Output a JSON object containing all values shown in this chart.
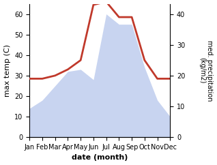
{
  "months": [
    "Jan",
    "Feb",
    "Mar",
    "Apr",
    "May",
    "Jun",
    "Jul",
    "Aug",
    "Sep",
    "Oct",
    "Nov",
    "Dec"
  ],
  "month_indices": [
    1,
    2,
    3,
    4,
    5,
    6,
    7,
    8,
    9,
    10,
    11,
    12
  ],
  "temperature": [
    14,
    18,
    25,
    32,
    33,
    28,
    60,
    55,
    55,
    34,
    18,
    10
  ],
  "precipitation": [
    19,
    19,
    20,
    22,
    25,
    43,
    44,
    39,
    39,
    25,
    19,
    19
  ],
  "temp_fill_color": "#c8d4f0",
  "precip_color": "#c0392b",
  "ylabel_left": "max temp (C)",
  "ylabel_right": "med. precipitation\n(kg/m2)",
  "xlabel": "date (month)",
  "ylim_left": [
    0,
    65
  ],
  "ylim_right": [
    0,
    43.33
  ],
  "yticks_left": [
    0,
    10,
    20,
    30,
    40,
    50,
    60
  ],
  "yticks_right": [
    0,
    10,
    20,
    30,
    40
  ],
  "bg_color": "#ffffff",
  "precip_linewidth": 2.0,
  "xlabel_fontsize": 8,
  "ylabel_fontsize": 8,
  "tick_fontsize": 7
}
